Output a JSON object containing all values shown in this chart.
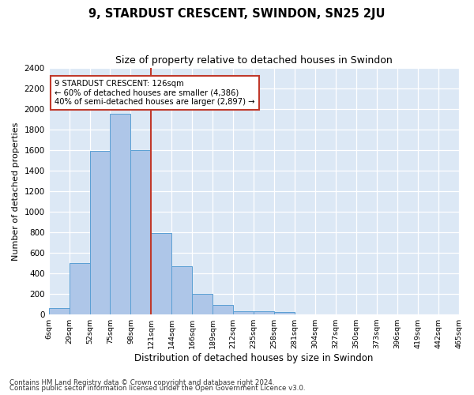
{
  "title": "9, STARDUST CRESCENT, SWINDON, SN25 2JU",
  "subtitle": "Size of property relative to detached houses in Swindon",
  "xlabel": "Distribution of detached houses by size in Swindon",
  "ylabel": "Number of detached properties",
  "bar_values": [
    60,
    500,
    1590,
    1950,
    1600,
    790,
    470,
    200,
    90,
    35,
    30,
    20,
    0,
    0,
    0,
    0,
    0,
    0,
    0,
    0
  ],
  "bar_labels": [
    "6sqm",
    "29sqm",
    "52sqm",
    "75sqm",
    "98sqm",
    "121sqm",
    "144sqm",
    "166sqm",
    "189sqm",
    "212sqm",
    "235sqm",
    "258sqm",
    "281sqm",
    "304sqm",
    "327sqm",
    "350sqm",
    "373sqm",
    "396sqm",
    "419sqm",
    "442sqm",
    "465sqm"
  ],
  "bar_color": "#aec6e8",
  "bar_edge_color": "#5a9fd4",
  "vline_x": 5,
  "vline_color": "#c0392b",
  "annotation_text": "9 STARDUST CRESCENT: 126sqm\n← 60% of detached houses are smaller (4,386)\n40% of semi-detached houses are larger (2,897) →",
  "annotation_box_color": "#c0392b",
  "ylim": [
    0,
    2400
  ],
  "yticks": [
    0,
    200,
    400,
    600,
    800,
    1000,
    1200,
    1400,
    1600,
    1800,
    2000,
    2200,
    2400
  ],
  "bg_color": "#dce8f5",
  "footer_line1": "Contains HM Land Registry data © Crown copyright and database right 2024.",
  "footer_line2": "Contains public sector information licensed under the Open Government Licence v3.0."
}
